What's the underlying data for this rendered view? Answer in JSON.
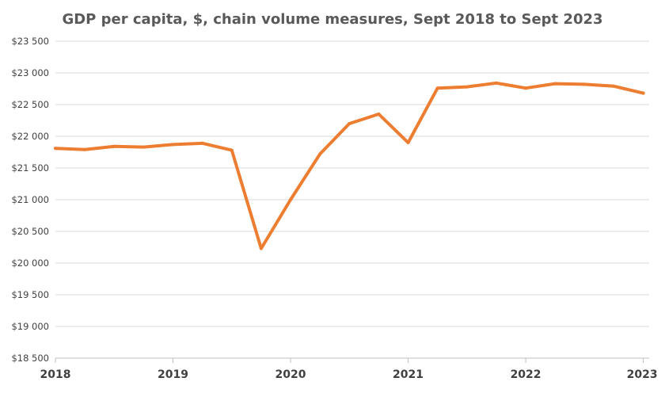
{
  "chart_data": {
    "type": "line",
    "title": "GDP per capita, $, chain volume measures, Sept 2018 to Sept 2023",
    "xlabel": "",
    "ylabel": "",
    "ylim": [
      18500,
      23500
    ],
    "xlim": [
      2018.0,
      2023.05
    ],
    "yticks": [
      18500,
      19000,
      19500,
      20000,
      20500,
      21000,
      21500,
      22000,
      22500,
      23000,
      23500
    ],
    "ytick_labels": [
      "$18 500",
      "$19 000",
      "$19 500",
      "$20 000",
      "$20 500",
      "$21 000",
      "$21 500",
      "$22 000",
      "$22 500",
      "$23 000",
      "$23 500"
    ],
    "xticks": [
      2018,
      2019,
      2020,
      2021,
      2022,
      2023
    ],
    "xtick_labels": [
      "2018",
      "2019",
      "2020",
      "2021",
      "2022",
      "2023"
    ],
    "grid": true,
    "legend": "none",
    "color": "#ED7D31",
    "series": [
      {
        "name": "GDP per capita",
        "x": [
          2018.0,
          2018.25,
          2018.5,
          2018.75,
          2019.0,
          2019.25,
          2019.5,
          2019.75,
          2020.0,
          2020.25,
          2020.5,
          2020.75,
          2021.0,
          2021.25,
          2021.5,
          2021.75,
          2022.0,
          2022.25,
          2022.5,
          2022.75,
          2023.0
        ],
        "values": [
          21810,
          21790,
          21840,
          21830,
          21870,
          21890,
          21780,
          20230,
          21000,
          21720,
          22200,
          22350,
          21900,
          22760,
          22780,
          22840,
          22760,
          22830,
          22820,
          22790,
          22680
        ]
      }
    ]
  }
}
